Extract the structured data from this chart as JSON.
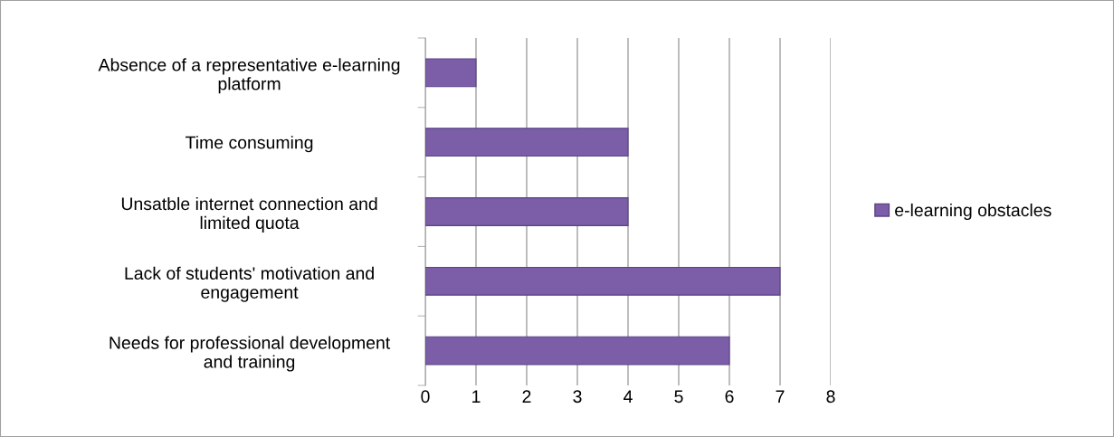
{
  "chart_data": {
    "type": "bar",
    "orientation": "horizontal",
    "categories": [
      "Absence of a representative e-learning\nplatform",
      "Time consuming",
      "Unsatble internet connection and\nlimited quota",
      "Lack of students' motivation and\nengagement",
      "Needs for professional development\nand training"
    ],
    "series": [
      {
        "name": "e-learning obstacles",
        "color": "#7b5ea7",
        "values": [
          1,
          4,
          4,
          7,
          6
        ]
      }
    ],
    "xlim": [
      0,
      8
    ],
    "xticks": [
      0,
      1,
      2,
      3,
      4,
      5,
      6,
      7,
      8
    ],
    "grid": "x",
    "legend": "right"
  }
}
